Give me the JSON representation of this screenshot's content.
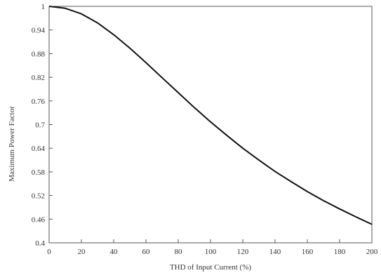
{
  "chart_data": {
    "type": "line",
    "title": "",
    "xlabel": "THD of Input Current (%)",
    "ylabel": "Maximum Power Factor",
    "xlim": [
      0,
      200
    ],
    "ylim": [
      0.4,
      1.0
    ],
    "x_ticks": [
      0,
      20,
      40,
      60,
      80,
      100,
      120,
      140,
      160,
      180,
      200
    ],
    "x_tick_labels": [
      "0",
      "20",
      "40",
      "60",
      "80",
      "100",
      "120",
      "140",
      "160",
      "180",
      "200"
    ],
    "y_ticks": [
      1.0,
      0.94,
      0.88,
      0.82,
      0.76,
      0.7,
      0.64,
      0.58,
      0.52,
      0.46,
      0.4
    ],
    "y_tick_labels": [
      "1",
      "0.94",
      "0.88",
      "0.82",
      "0.76",
      "0.7",
      "0.64",
      "0.58",
      "0.52",
      "0.46",
      "0.4"
    ],
    "grid": false,
    "series": [
      {
        "color": "#111111",
        "x": [
          0,
          10,
          20,
          30,
          40,
          50,
          60,
          70,
          80,
          90,
          100,
          110,
          120,
          130,
          140,
          150,
          160,
          170,
          180,
          190,
          200
        ],
        "y": [
          1.0,
          0.995,
          0.981,
          0.958,
          0.928,
          0.894,
          0.857,
          0.819,
          0.781,
          0.743,
          0.707,
          0.673,
          0.64,
          0.61,
          0.581,
          0.555,
          0.53,
          0.507,
          0.486,
          0.466,
          0.447
        ]
      }
    ]
  },
  "colors": {
    "axis": "#555555",
    "curve": "#111111"
  }
}
